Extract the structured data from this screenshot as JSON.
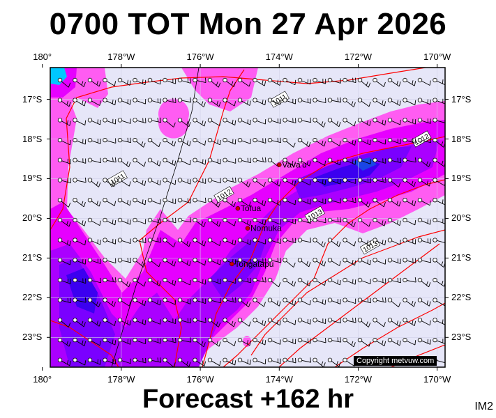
{
  "title": "0700 TOT Mon 27 Apr 2026",
  "footer": "Forecast +162 hr",
  "corner_label": "IM2",
  "copyright": "Copyright metvuw.com",
  "lon_labels": [
    "180°",
    "178°W",
    "176°W",
    "174°W",
    "172°W",
    "170°W"
  ],
  "lat_labels": [
    "17°S",
    "18°S",
    "19°S",
    "20°S",
    "21°S",
    "22°S",
    "23°S"
  ],
  "places": [
    {
      "name": "Vava'u",
      "lon": -174.0,
      "lat": -18.65
    },
    {
      "name": "Tofua",
      "lon": -175.05,
      "lat": -19.75
    },
    {
      "name": "Nomuka",
      "lon": -174.8,
      "lat": -20.25
    },
    {
      "name": "Tongatapu",
      "lon": -175.2,
      "lat": -21.15
    }
  ],
  "isobars": [
    {
      "label": "1011",
      "lon": -178.1,
      "lat": -19.0
    },
    {
      "label": "1011",
      "lon": -174.0,
      "lat": -17.0
    },
    {
      "label": "1012",
      "lon": -175.4,
      "lat": -19.4
    },
    {
      "label": "1012",
      "lon": -170.4,
      "lat": -18.0
    },
    {
      "label": "1013",
      "lon": -173.1,
      "lat": -19.9
    },
    {
      "label": "1013",
      "lon": -171.7,
      "lat": -20.7
    }
  ],
  "colors": {
    "background": "#e6e6f8",
    "isobar": "#ff0000",
    "rain_levels": [
      "#ff5cf2",
      "#e600ff",
      "#aa00ff",
      "#7a00ff",
      "#3b00f0",
      "#1a46e6",
      "#00c8ff"
    ]
  }
}
